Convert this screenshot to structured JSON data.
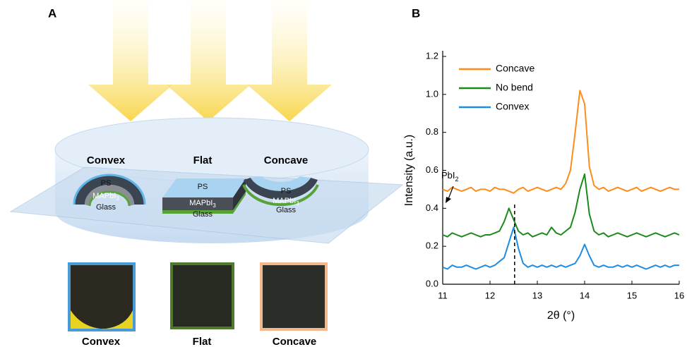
{
  "panel_labels": [
    "A",
    "B"
  ],
  "illustration": {
    "samples": [
      {
        "name": "Convex",
        "layers": [
          {
            "main": "PS"
          },
          {
            "main": "MAPbI",
            "sub": "3"
          },
          {
            "main": "Glass"
          }
        ],
        "photo_label": "Convex"
      },
      {
        "name": "Flat",
        "layers": [
          {
            "main": "PS"
          },
          {
            "main": "MAPbI",
            "sub": "3"
          },
          {
            "main": "Glass"
          }
        ],
        "photo_label": "Flat"
      },
      {
        "name": "Concave",
        "layers": [
          {
            "main": "PS"
          },
          {
            "main": "MAPbI",
            "sub": "3"
          },
          {
            "main": "Glass"
          }
        ],
        "photo_label": "Concave"
      }
    ]
  },
  "chart_data": {
    "type": "line",
    "xlabel": "2θ (°)",
    "ylabel": "Intensity (a.u.)",
    "xlim": [
      11,
      16
    ],
    "ylim": [
      0,
      1.2
    ],
    "xticks": [
      11,
      12,
      13,
      14,
      15,
      16
    ],
    "yticks": [
      {
        "value": 0,
        "label": "0.0"
      },
      0.2,
      0.4,
      0.6,
      0.8,
      {
        "value": 1,
        "label": "1.0"
      },
      1.2
    ],
    "legend": "upper left",
    "annotation": {
      "text": "PbI",
      "sub": "2",
      "x": 12.52
    },
    "x": [
      11.0,
      11.1,
      11.2,
      11.3,
      11.4,
      11.5,
      11.6,
      11.7,
      11.8,
      11.9,
      12.0,
      12.1,
      12.2,
      12.3,
      12.4,
      12.5,
      12.6,
      12.7,
      12.8,
      12.9,
      13.0,
      13.1,
      13.2,
      13.3,
      13.4,
      13.5,
      13.6,
      13.7,
      13.8,
      13.9,
      14.0,
      14.1,
      14.2,
      14.3,
      14.4,
      14.5,
      14.6,
      14.7,
      14.8,
      14.9,
      15.0,
      15.1,
      15.2,
      15.3,
      15.4,
      15.5,
      15.6,
      15.7,
      15.8,
      15.9,
      16.0
    ],
    "series": [
      {
        "name": "Concave",
        "color": "#ff8c1a",
        "values": [
          0.5,
          0.49,
          0.51,
          0.5,
          0.49,
          0.5,
          0.51,
          0.49,
          0.5,
          0.5,
          0.49,
          0.51,
          0.5,
          0.5,
          0.49,
          0.48,
          0.5,
          0.51,
          0.49,
          0.5,
          0.51,
          0.5,
          0.49,
          0.5,
          0.51,
          0.5,
          0.53,
          0.6,
          0.8,
          1.02,
          0.95,
          0.62,
          0.52,
          0.5,
          0.51,
          0.49,
          0.5,
          0.51,
          0.5,
          0.49,
          0.5,
          0.51,
          0.49,
          0.5,
          0.51,
          0.5,
          0.49,
          0.5,
          0.51,
          0.5,
          0.5
        ]
      },
      {
        "name": "No bend",
        "color": "#1a8a1a",
        "values": [
          0.26,
          0.25,
          0.27,
          0.26,
          0.25,
          0.26,
          0.27,
          0.26,
          0.25,
          0.26,
          0.26,
          0.27,
          0.28,
          0.33,
          0.4,
          0.34,
          0.28,
          0.26,
          0.27,
          0.25,
          0.26,
          0.27,
          0.26,
          0.3,
          0.27,
          0.26,
          0.28,
          0.3,
          0.38,
          0.5,
          0.58,
          0.37,
          0.28,
          0.26,
          0.27,
          0.25,
          0.26,
          0.27,
          0.26,
          0.25,
          0.26,
          0.27,
          0.26,
          0.25,
          0.26,
          0.27,
          0.26,
          0.25,
          0.26,
          0.27,
          0.26
        ]
      },
      {
        "name": "Convex",
        "color": "#1e8ce0",
        "values": [
          0.09,
          0.08,
          0.1,
          0.09,
          0.09,
          0.1,
          0.09,
          0.08,
          0.09,
          0.1,
          0.09,
          0.1,
          0.12,
          0.14,
          0.22,
          0.3,
          0.19,
          0.11,
          0.09,
          0.1,
          0.09,
          0.1,
          0.09,
          0.1,
          0.09,
          0.1,
          0.09,
          0.1,
          0.11,
          0.15,
          0.21,
          0.15,
          0.1,
          0.09,
          0.1,
          0.09,
          0.09,
          0.1,
          0.09,
          0.1,
          0.09,
          0.1,
          0.09,
          0.08,
          0.09,
          0.1,
          0.09,
          0.1,
          0.09,
          0.1,
          0.1
        ]
      }
    ]
  }
}
